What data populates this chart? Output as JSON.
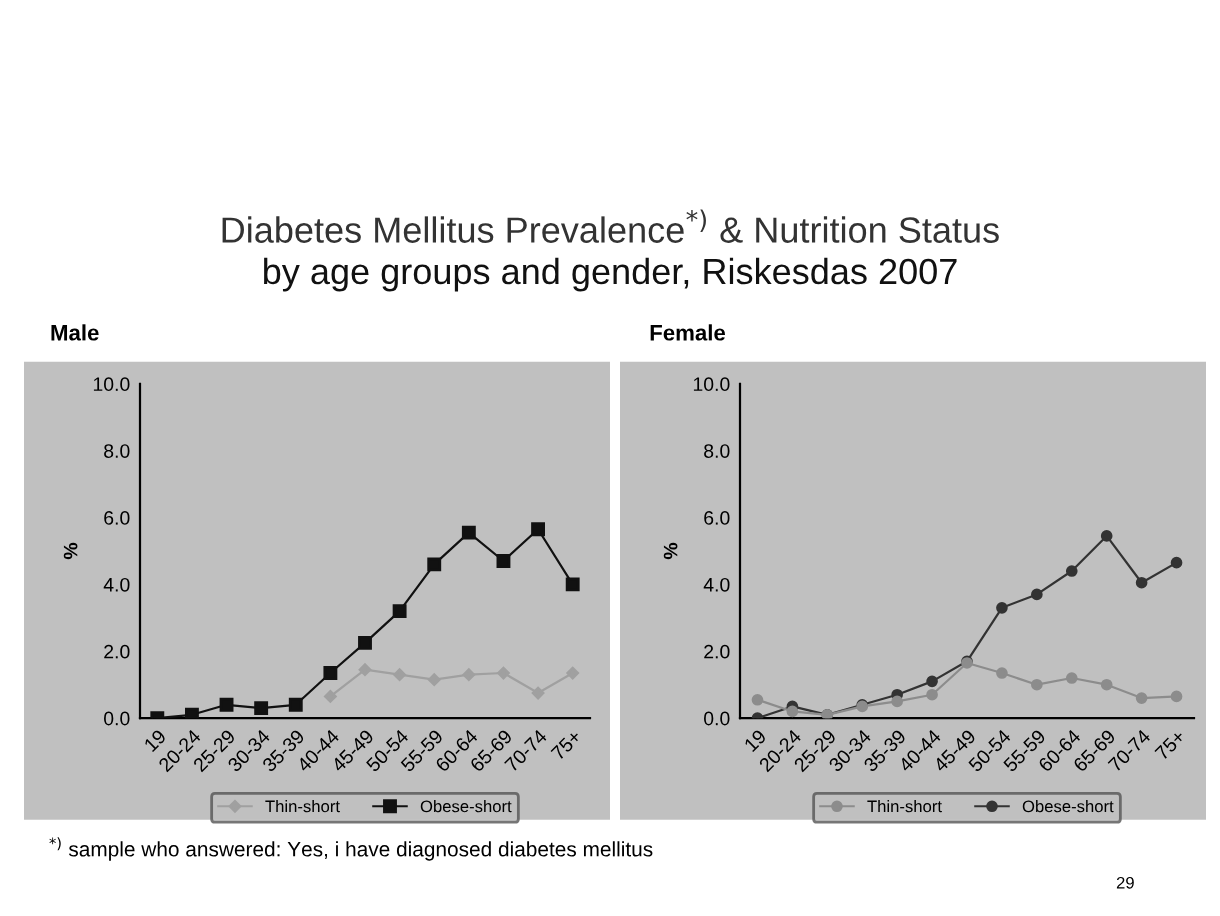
{
  "chart_data": [
    {
      "type": "line",
      "title": "Diabetes Mellitus Prevalence$^{*)}$ & Nutrition Status",
      "subtitle": "by age groups and gender, Riskesdas 2007",
      "annotations": [
        "$^{*)}$ sample who answered: Yes, i have diagnosed diabetes mellitus",
        "29"
      ],
      "legend_title": "Male",
      "ylabel": "%",
      "categories": [
        "19",
        "20-24",
        "25-29",
        "30-34",
        "35-39",
        "40-44",
        "45-49",
        "50-54",
        "55-59",
        "60-64",
        "65-69",
        "70-74",
        "75+"
      ],
      "series": [
        {
          "name": "Thin-short",
          "color": "#a0a0a0",
          "marker": "diamond",
          "values": [
            null,
            null,
            null,
            null,
            null,
            0.65,
            1.45,
            1.3,
            1.15,
            1.3,
            1.35,
            0.75,
            1.35
          ]
        },
        {
          "name": "Obese-short",
          "color": "#111111",
          "marker": "square",
          "values": [
            0.0,
            0.1,
            0.4,
            0.3,
            0.4,
            1.35,
            2.25,
            3.2,
            4.6,
            5.55,
            4.7,
            5.65,
            4.0
          ]
        }
      ],
      "ylim": [
        0,
        10
      ],
      "yticks": [
        {
          "value": 0,
          "label": "0.0"
        },
        {
          "value": 2,
          "label": "2.0"
        },
        {
          "value": 4,
          "label": "4.0"
        },
        {
          "value": 6,
          "label": "6.0"
        },
        {
          "value": 8,
          "label": "8.0"
        },
        {
          "value": 10,
          "label": "10.0"
        }
      ],
      "grid": false,
      "legend": "bottom",
      "line_style": "solid"
    },
    {
      "type": "line",
      "legend_title": "Female",
      "ylabel": "%",
      "categories": [
        "19",
        "20-24",
        "25-29",
        "30-34",
        "35-39",
        "40-44",
        "45-49",
        "50-54",
        "55-59",
        "60-64",
        "65-69",
        "70-74",
        "75+"
      ],
      "series": [
        {
          "name": "Thin-short",
          "color": "#8c8c8c",
          "marker": "circle",
          "values": [
            0.55,
            0.2,
            0.1,
            0.35,
            0.5,
            0.7,
            1.65,
            1.35,
            1.0,
            1.2,
            1.0,
            0.6,
            0.65
          ]
        },
        {
          "name": "Obese-short",
          "color": "#333333",
          "marker": "circle",
          "values": [
            0.0,
            0.35,
            0.1,
            0.4,
            0.7,
            1.1,
            1.7,
            3.3,
            3.7,
            4.4,
            5.45,
            4.05,
            4.65
          ]
        }
      ],
      "ylim": [
        0,
        10
      ],
      "yticks": [
        {
          "value": 0,
          "label": "0.0"
        },
        {
          "value": 2,
          "label": "2.0"
        },
        {
          "value": 4,
          "label": "4.0"
        },
        {
          "value": 6,
          "label": "6.0"
        },
        {
          "value": 8,
          "label": "8.0"
        },
        {
          "value": 10,
          "label": "10.0"
        }
      ],
      "grid": false,
      "legend": "bottom",
      "line_style": "solid"
    }
  ]
}
